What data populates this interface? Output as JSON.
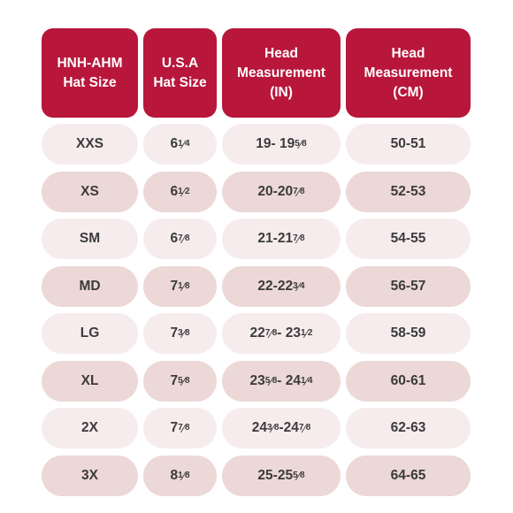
{
  "headers": [
    "HNH-AHM\nHat Size",
    "U.S.A\nHat Size",
    "Head\nMeasurement\n(IN)",
    "Head\nMeasurement\n(CM)"
  ],
  "rows": [
    {
      "ahm": "XXS",
      "usa": "6¼",
      "in": "19- 19⅝",
      "cm": "50-51"
    },
    {
      "ahm": "XS",
      "usa": "6 ½",
      "in": "20-20⅞",
      "cm": "52-53"
    },
    {
      "ahm": "SM",
      "usa": "6 ⅞",
      "in": "21-21⅞",
      "cm": "54-55"
    },
    {
      "ahm": "MD",
      "usa": "7 ⅛",
      "in": "22-22 ¾",
      "cm": "56-57"
    },
    {
      "ahm": "LG",
      "usa": "7 ⅜",
      "in": "22 ⅞ - 23 ½",
      "cm": "58-59"
    },
    {
      "ahm": "XL",
      "usa": "7 ⅝",
      "in": "23 ⅝ - 24 ¼",
      "cm": "60-61"
    },
    {
      "ahm": "2X",
      "usa": "7 ⅞",
      "in": "24 ⅜-24 ⅞",
      "cm": "62-63"
    },
    {
      "ahm": "3X",
      "usa": "8 ⅛",
      "in": "25-25 ⅝",
      "cm": "64-65"
    }
  ],
  "colors": {
    "header_bg": "#b8163b",
    "row_light": "#f7eced",
    "row_dark": "#ecd8d6",
    "text": "#3b3b3b"
  }
}
